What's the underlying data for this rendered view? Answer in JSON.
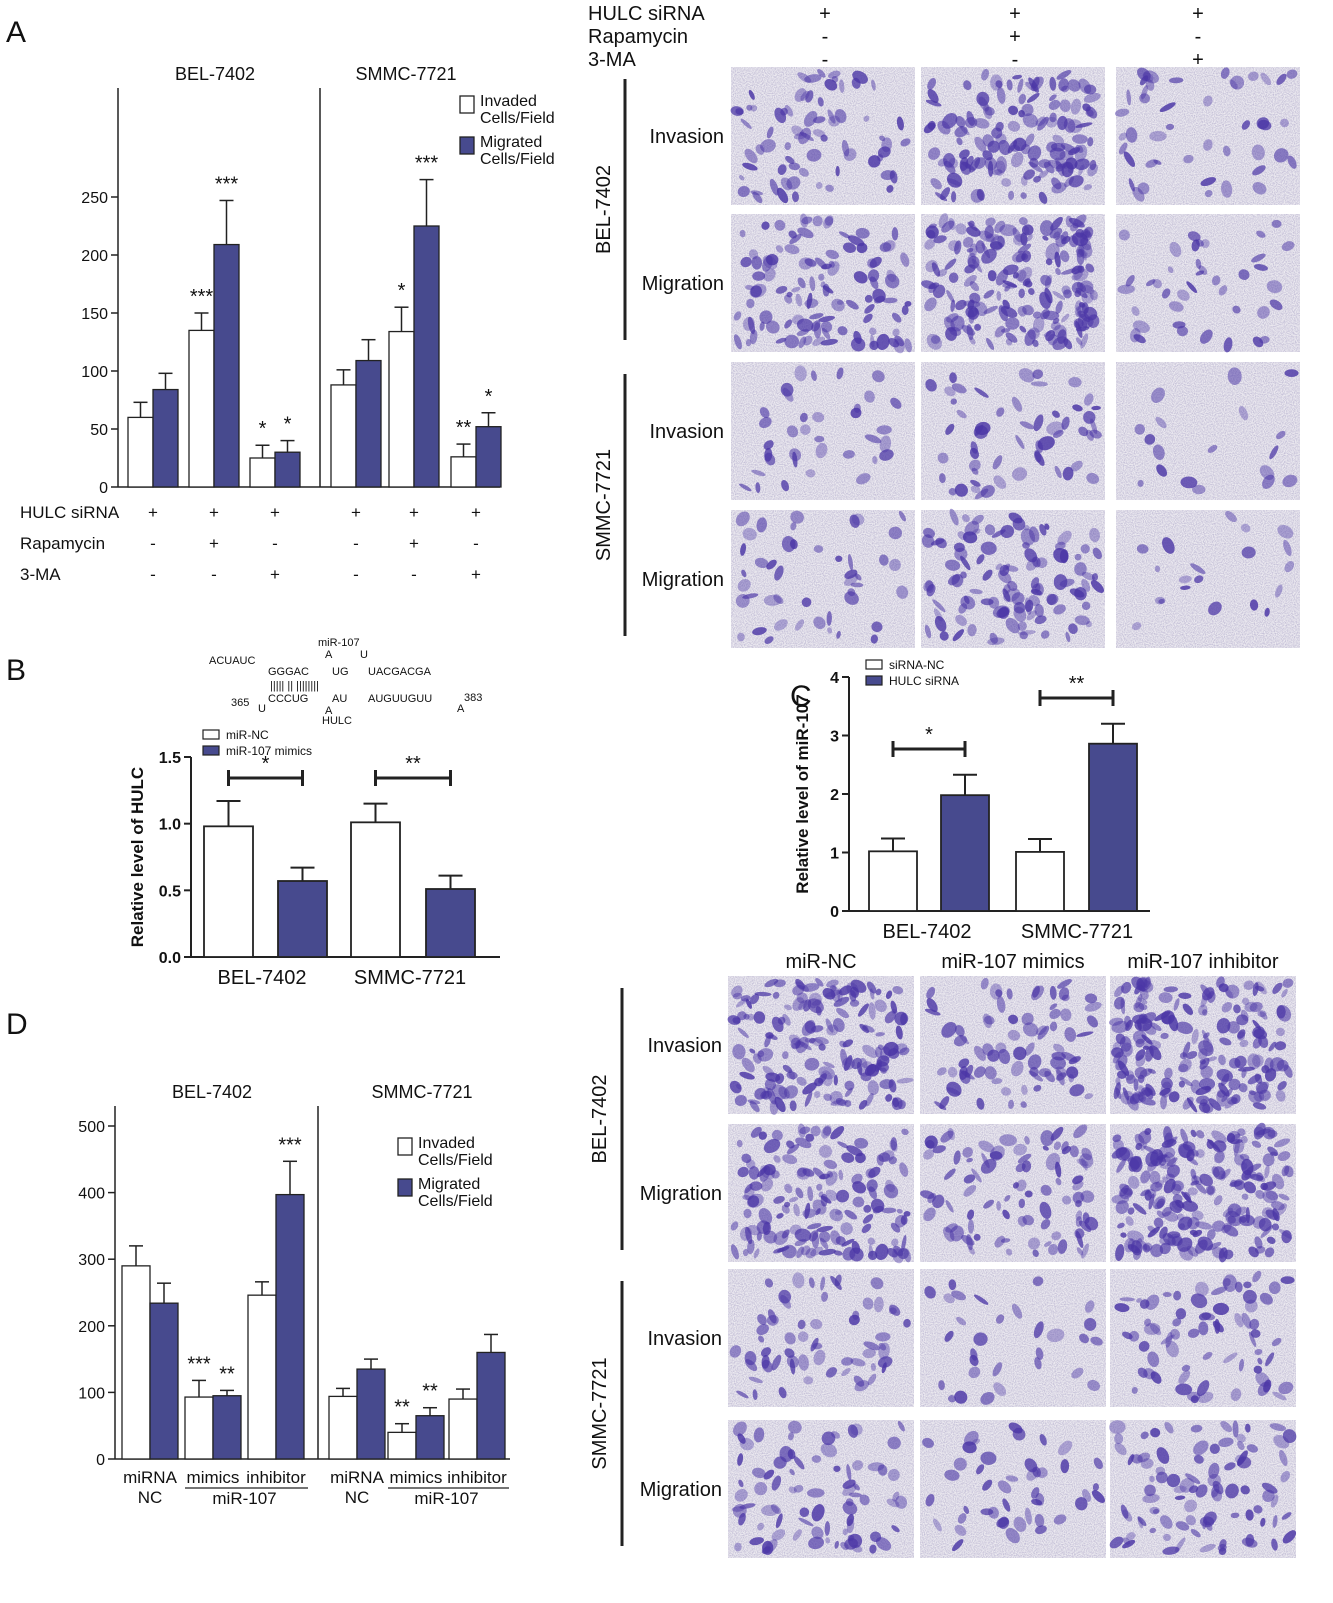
{
  "colors": {
    "white_bar": "#ffffff",
    "dark_bar": "#474a8e",
    "micro_bg": "#eceaf0",
    "cell_stain": "#4b36a6"
  },
  "panels": {
    "A": "A",
    "B": "B",
    "C": "C",
    "D": "D"
  },
  "chart_data": [
    {
      "type": "bar",
      "panel": "A",
      "groups": [
        "BEL-7402",
        "SMMC-7721"
      ],
      "ylim": [
        0,
        300
      ],
      "yticks": [
        "0",
        "50",
        "100",
        "150",
        "200",
        "250"
      ],
      "legend": [
        "Invaded Cells/Field",
        "Migrated Cells/Field"
      ],
      "row_labels": [
        "HULC siRNA",
        "Rapamycin",
        "3-MA"
      ],
      "conditions": [
        [
          "+",
          "-",
          "-"
        ],
        [
          "+",
          "+",
          "-"
        ],
        [
          "+",
          "-",
          "+"
        ]
      ],
      "series": [
        {
          "name": "Invaded Cells/Field",
          "values": [
            [
              60,
              135,
              25
            ],
            [
              88,
              134,
              26
            ]
          ],
          "errors": [
            [
              13,
              15,
              11
            ],
            [
              13,
              21,
              11
            ]
          ],
          "sig": [
            [
              "",
              "***",
              "*"
            ],
            [
              "",
              "*",
              "**"
            ]
          ]
        },
        {
          "name": "Migrated Cells/Field",
          "values": [
            [
              84,
              209,
              30
            ],
            [
              109,
              225,
              52
            ]
          ],
          "errors": [
            [
              14,
              38,
              10
            ],
            [
              18,
              40,
              12
            ]
          ],
          "sig": [
            [
              "",
              "***",
              "*"
            ],
            [
              "",
              "***",
              "*"
            ]
          ]
        }
      ]
    },
    {
      "type": "bar",
      "panel": "B",
      "categories": [
        "BEL-7402",
        "SMMC-7721"
      ],
      "ylabel": "Relative level of HULC",
      "ylim": [
        0,
        1.5
      ],
      "yticks": [
        "0.0",
        "0.5",
        "1.0",
        "1.5"
      ],
      "series": [
        {
          "name": "miR-NC",
          "values": [
            0.98,
            1.01
          ],
          "errors": [
            0.19,
            0.14
          ]
        },
        {
          "name": "miR-107 mimics",
          "values": [
            0.57,
            0.51
          ],
          "errors": [
            0.1,
            0.1
          ]
        }
      ],
      "sig": [
        "*",
        "**"
      ]
    },
    {
      "type": "bar",
      "panel": "C",
      "categories": [
        "BEL-7402",
        "SMMC-7721"
      ],
      "ylabel": "Relative level of miR-107",
      "ylim": [
        0,
        4
      ],
      "yticks": [
        "0",
        "1",
        "2",
        "3",
        "4"
      ],
      "series": [
        {
          "name": "siRNA-NC",
          "values": [
            1.02,
            1.01
          ],
          "errors": [
            0.22,
            0.22
          ]
        },
        {
          "name": "HULC siRNA",
          "values": [
            1.98,
            2.86
          ],
          "errors": [
            0.35,
            0.34
          ]
        }
      ],
      "sig": [
        "*",
        "**"
      ]
    },
    {
      "type": "bar",
      "panel": "D",
      "groups": [
        "BEL-7402",
        "SMMC-7721"
      ],
      "ylim": [
        0,
        500
      ],
      "yticks": [
        "0",
        "100",
        "200",
        "300",
        "400",
        "500"
      ],
      "legend": [
        "Invaded Cells/Field",
        "Migrated Cells/Field"
      ],
      "categories": [
        "miRNA NC",
        "mimics",
        "inhibitor"
      ],
      "x_group_label": "miR-107",
      "series": [
        {
          "name": "Invaded Cells/Field",
          "values": [
            [
              290,
              93,
              246
            ],
            [
              94,
              40,
              90
            ]
          ],
          "errors": [
            [
              30,
              25,
              20
            ],
            [
              12,
              13,
              15
            ]
          ],
          "sig": [
            [
              "",
              "***",
              ""
            ],
            [
              "",
              "**",
              ""
            ]
          ]
        },
        {
          "name": "Migrated Cells/Field",
          "values": [
            [
              234,
              95,
              397
            ],
            [
              135,
              65,
              160
            ]
          ],
          "errors": [
            [
              30,
              8,
              50
            ],
            [
              15,
              12,
              27
            ]
          ],
          "sig": [
            [
              "",
              "**",
              "***"
            ],
            [
              "",
              "**",
              ""
            ]
          ]
        }
      ]
    }
  ],
  "micro_A": {
    "headers": [
      "HULC siRNA",
      "Rapamycin",
      "3-MA"
    ],
    "cols": [
      [
        "+",
        "-",
        "-"
      ],
      [
        "+",
        "+",
        "-"
      ],
      [
        "+",
        "-",
        "+"
      ]
    ],
    "cells": [
      "BEL-7402",
      "SMMC-7721"
    ],
    "rows": [
      "Invasion",
      "Migration"
    ]
  },
  "micro_D": {
    "cols": [
      "miR-NC",
      "miR-107 mimics",
      "miR-107 inhibitor"
    ],
    "cells": [
      "BEL-7402",
      "SMMC-7721"
    ],
    "rows": [
      "Invasion",
      "Migration"
    ]
  },
  "rna": {
    "mir_label": "miR-107",
    "hulc_label": "HULC",
    "top_unpaired_a": "ACUAUC",
    "top_unpaired_b": "A",
    "top_unpaired_c": "U",
    "top_paired_1": "GGGAC",
    "top_paired_2": "UG",
    "top_paired_3": "UACGACGA",
    "bars": "|||||  ||  ||||||||",
    "bottom_paired_1": "CCCUG",
    "bottom_paired_2": "AU",
    "bottom_paired_3": "AUGUUGUU",
    "bottom_unpaired_a": "U",
    "bottom_unpaired_b": "A",
    "bottom_unpaired_c": "A",
    "start_pos": "365",
    "end_pos": "383"
  }
}
